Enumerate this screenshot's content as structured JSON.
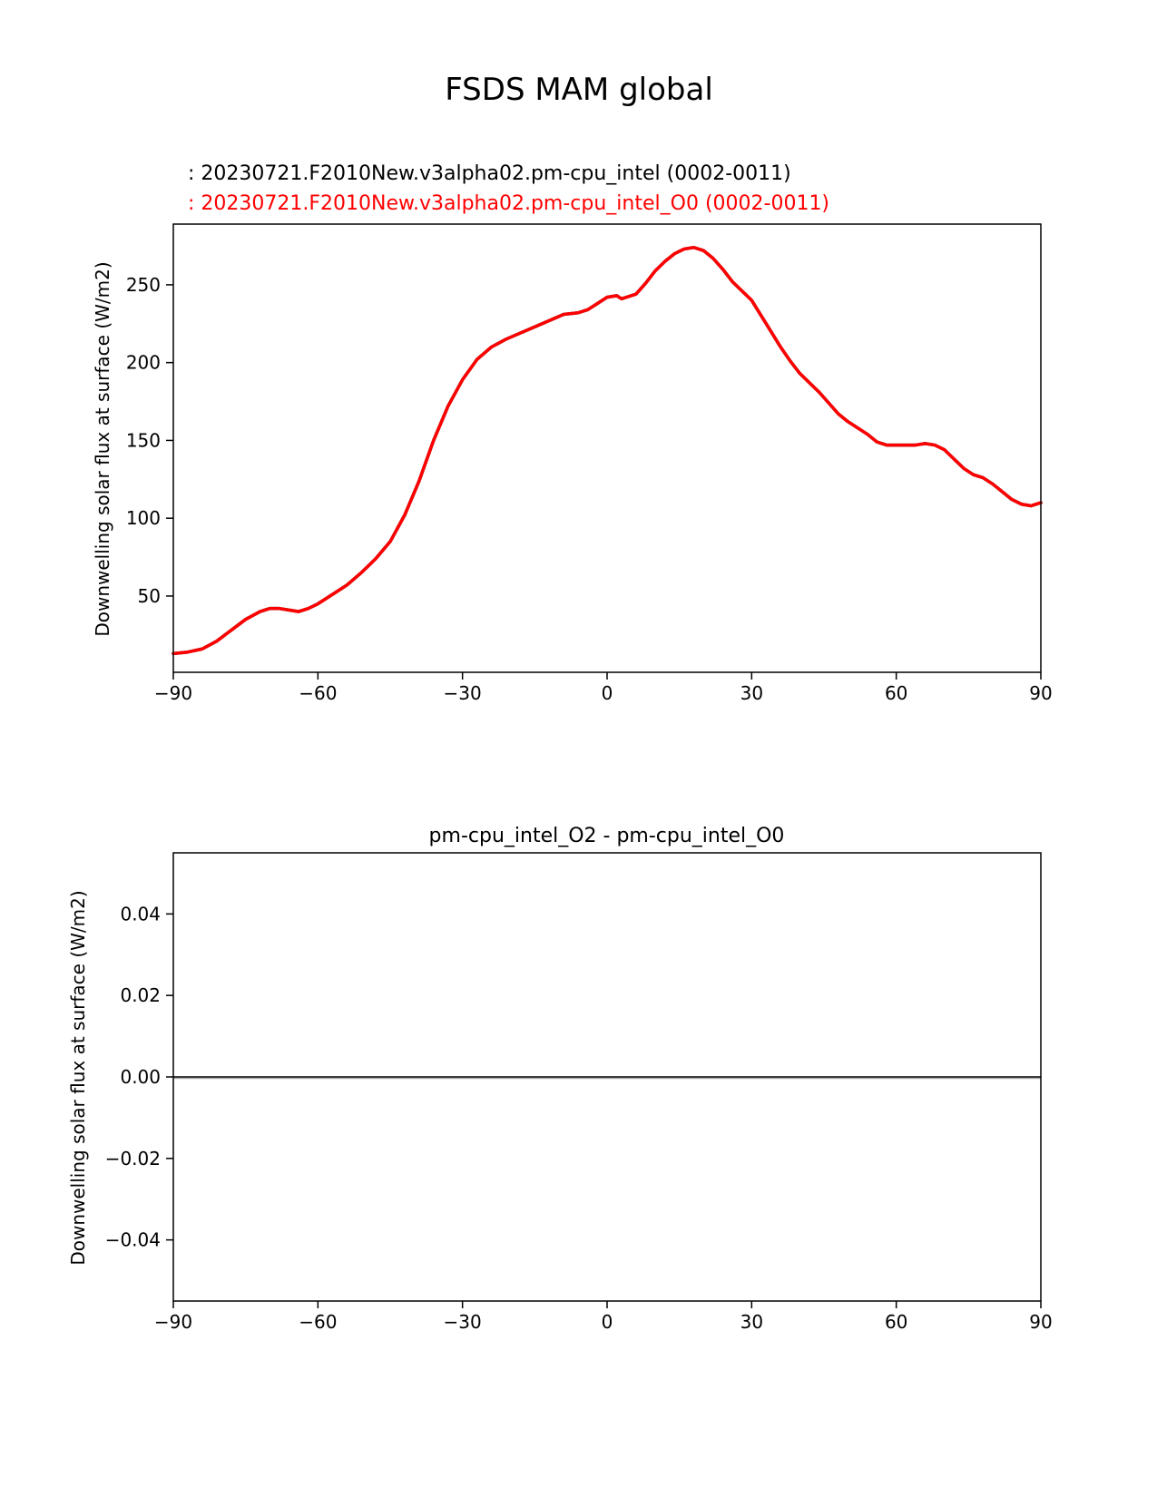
{
  "figure": {
    "title": "FSDS MAM global"
  },
  "chart_data": [
    {
      "type": "line",
      "legend": [
        {
          "text": ": 20230721.F2010New.v3alpha02.pm-cpu_intel (0002-0011)",
          "color": "#000000"
        },
        {
          "text": ": 20230721.F2010New.v3alpha02.pm-cpu_intel_O0 (0002-0011)",
          "color": "#ff0000"
        }
      ],
      "xlabel": "",
      "ylabel": "Downwelling solar flux at surface (W/m2)",
      "xlim": [
        -90,
        90
      ],
      "ylim": [
        1,
        289
      ],
      "xticks": [
        -90,
        -60,
        -30,
        0,
        30,
        60,
        90
      ],
      "xtick_labels": [
        "−90",
        "−60",
        "−30",
        "0",
        "30",
        "60",
        "90"
      ],
      "yticks": [
        50,
        100,
        150,
        200,
        250
      ],
      "ytick_labels": [
        "50",
        "100",
        "150",
        "200",
        "250"
      ],
      "grid": false,
      "series": [
        {
          "color": "#000000",
          "x": [
            -90,
            -87,
            -84,
            -81,
            -78,
            -75,
            -72,
            -70,
            -68,
            -66,
            -64,
            -62,
            -60,
            -57,
            -54,
            -51,
            -48,
            -45,
            -42,
            -39,
            -36,
            -33,
            -30,
            -27,
            -24,
            -21,
            -18,
            -15,
            -12,
            -9,
            -6,
            -4,
            -2,
            0,
            2,
            3,
            4,
            6,
            8,
            10,
            12,
            14,
            16,
            18,
            20,
            22,
            24,
            26,
            28,
            30,
            32,
            34,
            36,
            38,
            40,
            42,
            44,
            46,
            48,
            50,
            52,
            54,
            56,
            58,
            60,
            62,
            64,
            66,
            68,
            70,
            72,
            74,
            76,
            78,
            80,
            82,
            84,
            86,
            88,
            90
          ],
          "y": [
            13,
            14,
            16,
            21,
            28,
            35,
            40,
            42,
            42,
            41,
            40,
            42,
            45,
            51,
            57,
            65,
            74,
            85,
            102,
            124,
            150,
            172,
            189,
            202,
            210,
            215,
            219,
            223,
            227,
            231,
            232,
            234,
            238,
            242,
            243,
            241,
            242,
            244,
            251,
            259,
            265,
            270,
            273,
            274,
            272,
            267,
            260,
            252,
            246,
            240,
            230,
            220,
            210,
            201,
            193,
            187,
            181,
            174,
            167,
            162,
            158,
            154,
            149,
            147,
            147,
            147,
            147,
            148,
            147,
            144,
            138,
            132,
            128,
            126,
            122,
            117,
            112,
            109,
            108,
            110
          ]
        },
        {
          "color": "#ff0000",
          "x": [
            -90,
            -87,
            -84,
            -81,
            -78,
            -75,
            -72,
            -70,
            -68,
            -66,
            -64,
            -62,
            -60,
            -57,
            -54,
            -51,
            -48,
            -45,
            -42,
            -39,
            -36,
            -33,
            -30,
            -27,
            -24,
            -21,
            -18,
            -15,
            -12,
            -9,
            -6,
            -4,
            -2,
            0,
            2,
            3,
            4,
            6,
            8,
            10,
            12,
            14,
            16,
            18,
            20,
            22,
            24,
            26,
            28,
            30,
            32,
            34,
            36,
            38,
            40,
            42,
            44,
            46,
            48,
            50,
            52,
            54,
            56,
            58,
            60,
            62,
            64,
            66,
            68,
            70,
            72,
            74,
            76,
            78,
            80,
            82,
            84,
            86,
            88,
            90
          ],
          "y": [
            13,
            14,
            16,
            21,
            28,
            35,
            40,
            42,
            42,
            41,
            40,
            42,
            45,
            51,
            57,
            65,
            74,
            85,
            102,
            124,
            150,
            172,
            189,
            202,
            210,
            215,
            219,
            223,
            227,
            231,
            232,
            234,
            238,
            242,
            243,
            241,
            242,
            244,
            251,
            259,
            265,
            270,
            273,
            274,
            272,
            267,
            260,
            252,
            246,
            240,
            230,
            220,
            210,
            201,
            193,
            187,
            181,
            174,
            167,
            162,
            158,
            154,
            149,
            147,
            147,
            147,
            147,
            148,
            147,
            144,
            138,
            132,
            128,
            126,
            122,
            117,
            112,
            109,
            108,
            110
          ]
        }
      ]
    },
    {
      "type": "line",
      "title": "pm-cpu_intel_O2 - pm-cpu_intel_O0",
      "xlabel": "",
      "ylabel": "Downwelling solar flux at surface (W/m2)",
      "xlim": [
        -90,
        90
      ],
      "ylim": [
        -0.055,
        0.055
      ],
      "xticks": [
        -90,
        -60,
        -30,
        0,
        30,
        60,
        90
      ],
      "xtick_labels": [
        "−90",
        "−60",
        "−30",
        "0",
        "30",
        "60",
        "90"
      ],
      "yticks": [
        -0.04,
        -0.02,
        0.0,
        0.02,
        0.04
      ],
      "ytick_labels": [
        "−0.04",
        "−0.02",
        "0.00",
        "0.02",
        "0.04"
      ],
      "grid": false,
      "series": [
        {
          "color": "#000000",
          "x": [
            -90,
            90
          ],
          "y": [
            0.0,
            0.0
          ]
        }
      ],
      "reference_line": {
        "y": 0.0,
        "color": "#aaaaaa"
      }
    }
  ]
}
